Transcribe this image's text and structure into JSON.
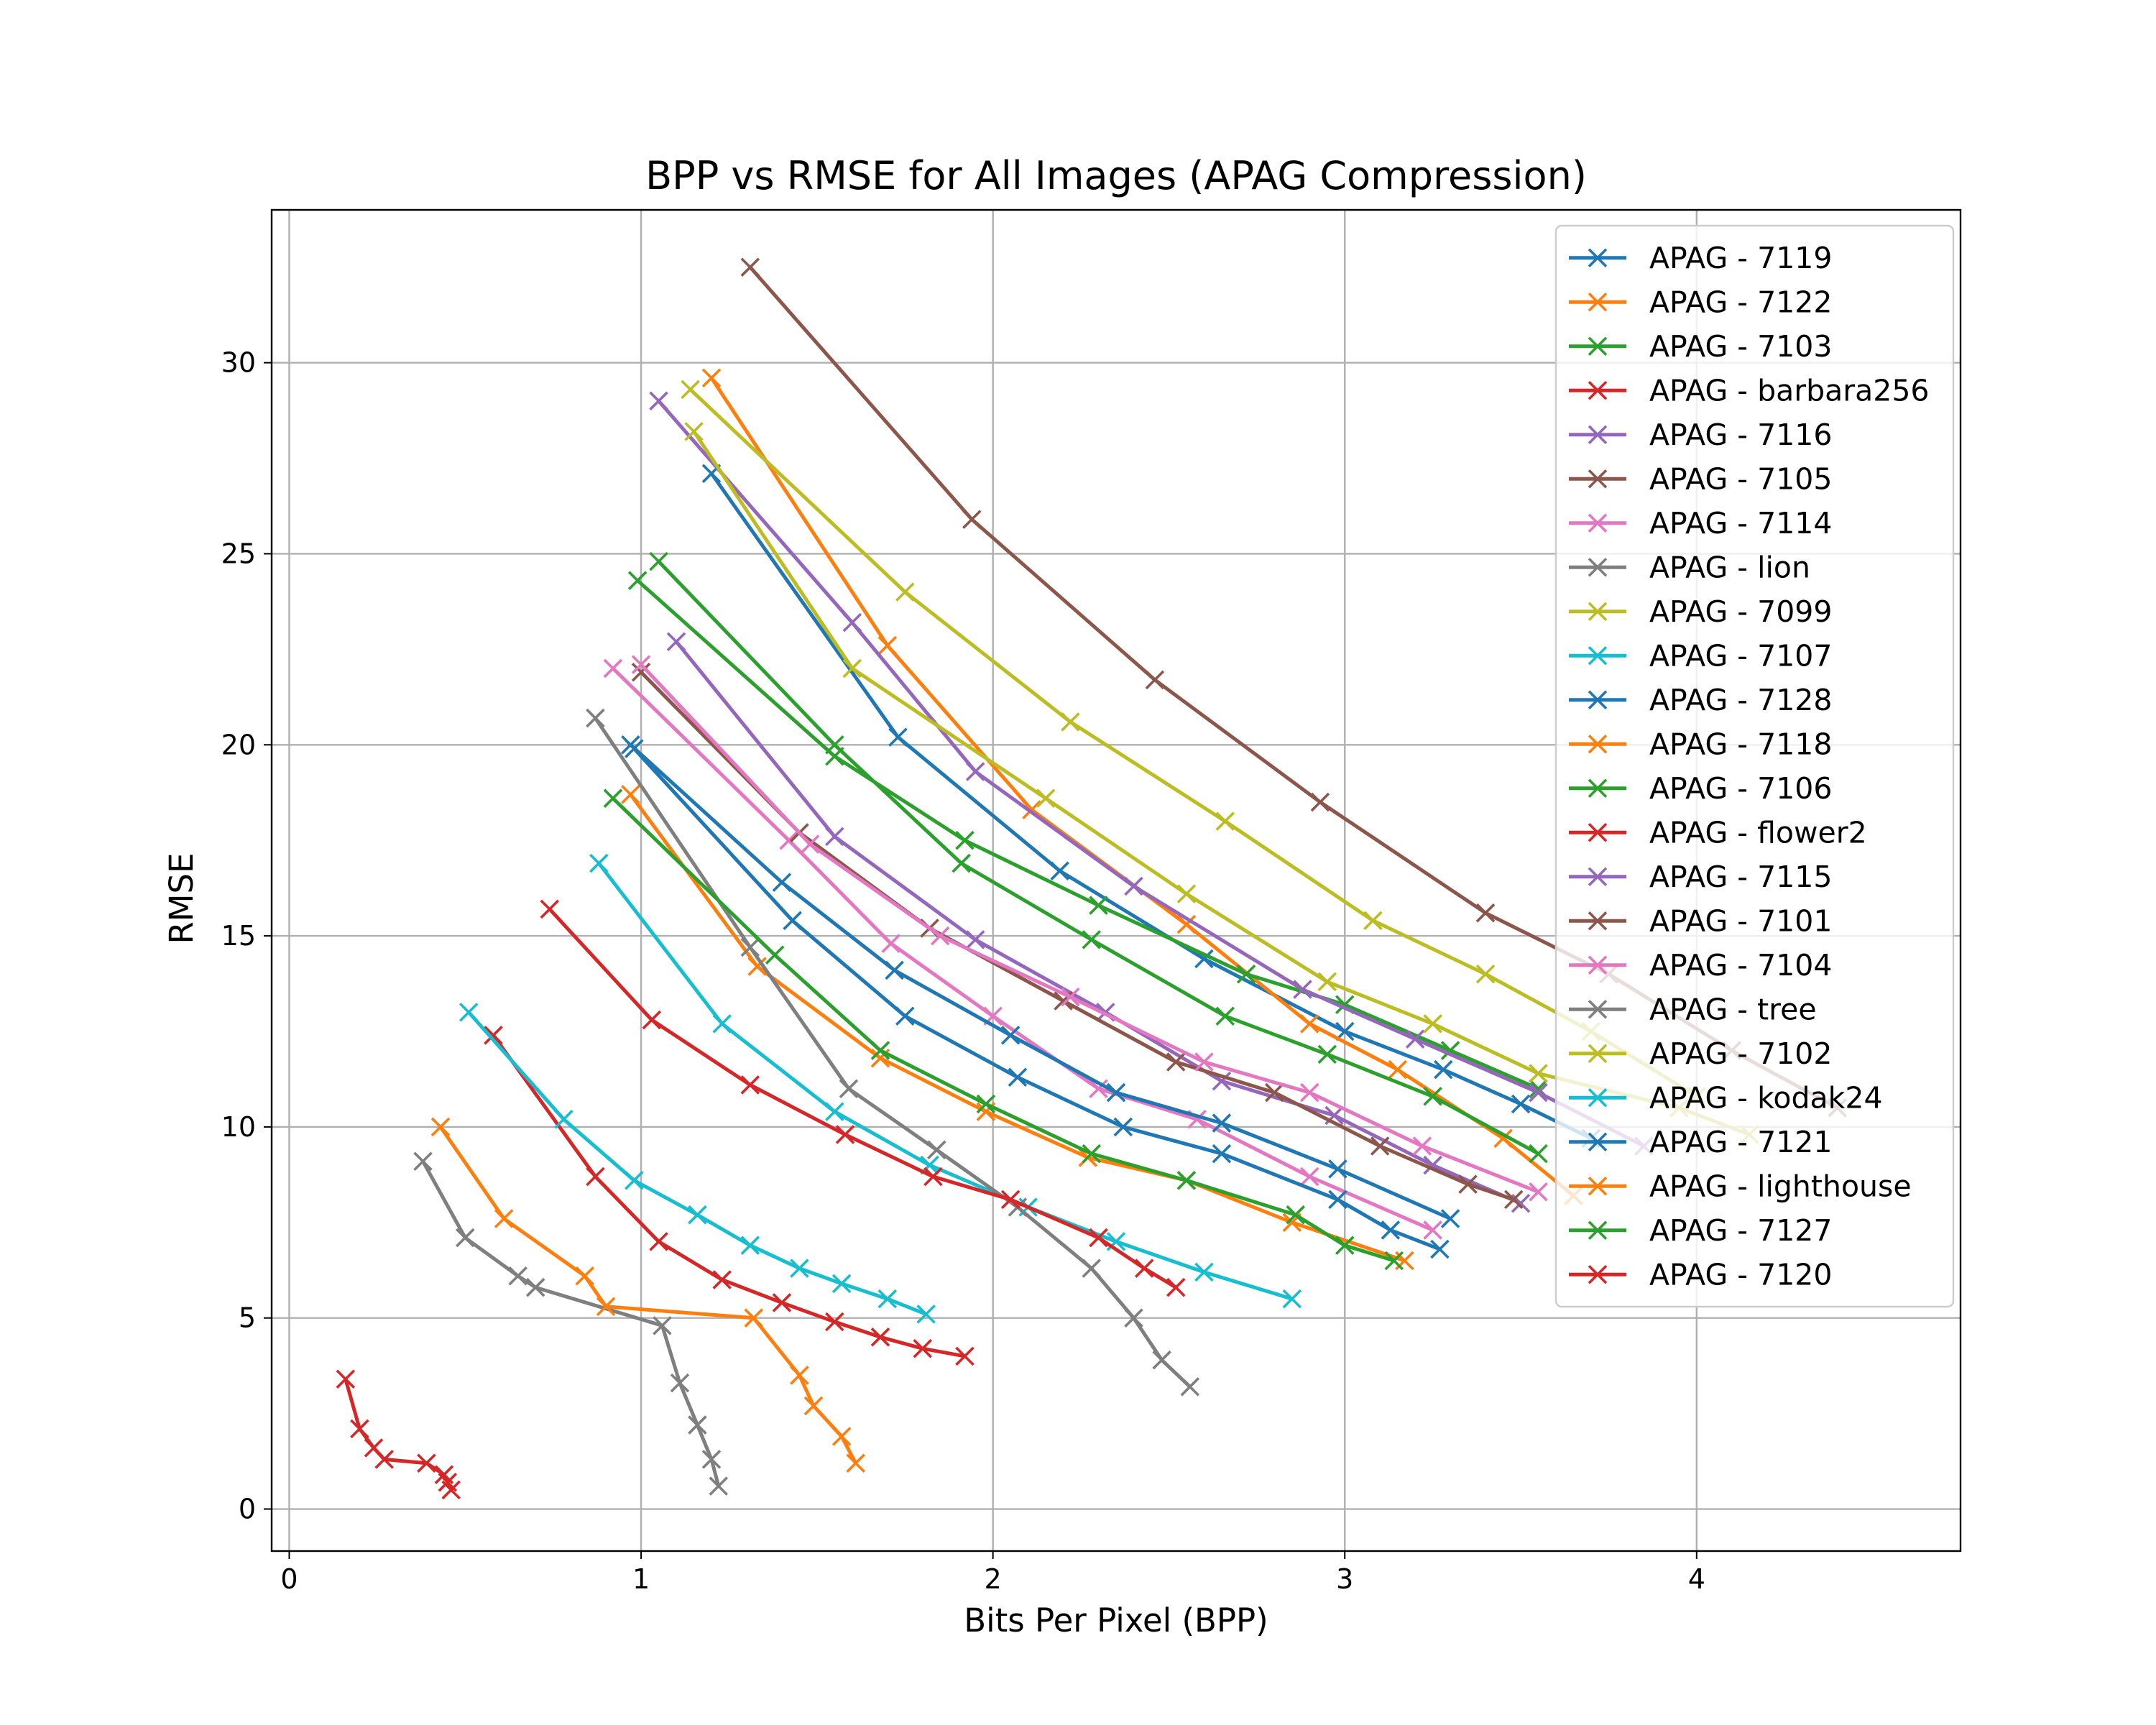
{
  "chart_data": {
    "type": "line",
    "title": "BPP vs RMSE for All Images (APAG Compression)",
    "xlabel": "Bits Per Pixel (BPP)",
    "ylabel": "RMSE",
    "xlim": [
      -0.05,
      4.75
    ],
    "ylim": [
      -1.1,
      34.0
    ],
    "xticks": [
      0,
      1,
      2,
      3,
      4
    ],
    "yticks": [
      0,
      5,
      10,
      15,
      20,
      25,
      30
    ],
    "grid": true,
    "marker": "x",
    "legend_location": "upper right",
    "series": [
      {
        "name": "APAG - 7119",
        "color": "#1f77b4",
        "x": [
          1.2,
          1.73,
          2.19,
          2.6,
          3.0,
          3.28,
          3.5,
          3.7
        ],
        "y": [
          27.1,
          20.2,
          16.7,
          14.4,
          12.5,
          11.5,
          10.6,
          9.7
        ]
      },
      {
        "name": "APAG - 7122",
        "color": "#ff7f0e",
        "x": [
          1.2,
          1.7,
          2.11,
          2.55,
          2.9,
          3.15,
          3.45,
          3.65
        ],
        "y": [
          29.6,
          22.6,
          18.3,
          15.3,
          12.7,
          11.5,
          9.7,
          8.2
        ]
      },
      {
        "name": "APAG - 7103",
        "color": "#2ca02c",
        "x": [
          0.99,
          1.55,
          1.92,
          2.3,
          2.72,
          3.0,
          3.3,
          3.55
        ],
        "y": [
          24.3,
          19.7,
          17.5,
          15.8,
          14.0,
          13.2,
          12.0,
          11.0
        ]
      },
      {
        "name": "APAG - barbara256",
        "color": "#d62728",
        "x": [
          0.16,
          0.2,
          0.24,
          0.27,
          0.39,
          0.44,
          0.45,
          0.46
        ],
        "y": [
          3.4,
          2.1,
          1.6,
          1.3,
          1.2,
          0.9,
          0.7,
          0.5
        ]
      },
      {
        "name": "APAG - 7116",
        "color": "#9467bd",
        "x": [
          1.05,
          1.6,
          1.95,
          2.4,
          2.88,
          3.2,
          3.55,
          3.85
        ],
        "y": [
          29.0,
          23.2,
          19.3,
          16.3,
          13.6,
          12.3,
          10.9,
          9.5
        ]
      },
      {
        "name": "APAG - 7105",
        "color": "#8c564b",
        "x": [
          1.31,
          1.94,
          2.46,
          2.93,
          3.4,
          3.75,
          4.1,
          4.4
        ],
        "y": [
          32.5,
          25.9,
          21.7,
          18.5,
          15.6,
          14.0,
          12.0,
          10.5
        ]
      },
      {
        "name": "APAG - 7114",
        "color": "#e377c2",
        "x": [
          0.92,
          1.42,
          1.71,
          2.0,
          2.3,
          2.58,
          2.9,
          3.25
        ],
        "y": [
          22.0,
          17.5,
          14.8,
          12.9,
          11.0,
          10.2,
          8.7,
          7.3
        ]
      },
      {
        "name": "APAG - lion",
        "color": "#7f7f7f",
        "x": [
          0.38,
          0.5,
          0.65,
          0.7,
          1.06,
          1.11,
          1.16,
          1.2,
          1.22
        ],
        "y": [
          9.1,
          7.1,
          6.1,
          5.8,
          4.8,
          3.3,
          2.2,
          1.3,
          0.6
        ]
      },
      {
        "name": "APAG - 7099",
        "color": "#bcbd22",
        "x": [
          1.14,
          1.75,
          2.22,
          2.66,
          3.08,
          3.4,
          3.7,
          4.0
        ],
        "y": [
          29.3,
          24.0,
          20.6,
          18.0,
          15.4,
          14.0,
          12.5,
          10.8
        ]
      },
      {
        "name": "APAG - 7107",
        "color": "#17becf",
        "x": [
          0.88,
          1.23,
          1.55,
          1.82,
          2.1,
          2.35,
          2.6,
          2.85
        ],
        "y": [
          16.9,
          12.7,
          10.4,
          9.0,
          7.9,
          7.0,
          6.2,
          5.5
        ]
      },
      {
        "name": "APAG - 7128",
        "color": "#1f77b4",
        "x": [
          0.97,
          1.4,
          1.72,
          2.05,
          2.35,
          2.65,
          2.98,
          3.3
        ],
        "y": [
          20.0,
          16.4,
          14.1,
          12.4,
          10.9,
          10.1,
          8.9,
          7.6
        ]
      },
      {
        "name": "APAG - 7118",
        "color": "#ff7f0e",
        "x": [
          0.97,
          1.33,
          1.68,
          1.98,
          2.27,
          2.55,
          2.85,
          3.17
        ],
        "y": [
          18.7,
          14.2,
          11.8,
          10.4,
          9.2,
          8.6,
          7.5,
          6.5
        ]
      },
      {
        "name": "APAG - 7106",
        "color": "#2ca02c",
        "x": [
          1.05,
          1.55,
          1.91,
          2.28,
          2.66,
          2.95,
          3.25,
          3.55
        ],
        "y": [
          24.8,
          20.0,
          16.9,
          14.9,
          12.9,
          11.9,
          10.8,
          9.3
        ]
      },
      {
        "name": "APAG - flower2",
        "color": "#d62728",
        "x": [
          0.58,
          0.87,
          1.05,
          1.23,
          1.4,
          1.55,
          1.68,
          1.8,
          1.92
        ],
        "y": [
          12.4,
          8.7,
          7.0,
          6.0,
          5.4,
          4.9,
          4.5,
          4.2,
          4.0
        ]
      },
      {
        "name": "APAG - 7115",
        "color": "#9467bd",
        "x": [
          1.1,
          1.55,
          1.95,
          2.32,
          2.65,
          2.97,
          3.25,
          3.5
        ],
        "y": [
          22.7,
          17.6,
          14.9,
          13.0,
          11.2,
          10.3,
          9.0,
          8.0
        ]
      },
      {
        "name": "APAG - 7101",
        "color": "#8c564b",
        "x": [
          1.0,
          1.45,
          1.82,
          2.2,
          2.52,
          2.8,
          3.1,
          3.35,
          3.48
        ],
        "y": [
          21.9,
          17.7,
          15.2,
          13.3,
          11.7,
          10.9,
          9.5,
          8.5,
          8.1
        ]
      },
      {
        "name": "APAG - 7104",
        "color": "#e377c2",
        "x": [
          1.0,
          1.48,
          1.85,
          2.22,
          2.6,
          2.9,
          3.22,
          3.55
        ],
        "y": [
          22.1,
          17.4,
          15.0,
          13.4,
          11.7,
          10.9,
          9.5,
          8.3
        ]
      },
      {
        "name": "APAG - tree",
        "color": "#7f7f7f",
        "x": [
          0.87,
          1.31,
          1.59,
          1.84,
          2.07,
          2.28,
          2.4,
          2.48,
          2.56
        ],
        "y": [
          20.7,
          14.7,
          11.0,
          9.4,
          7.9,
          6.3,
          5.0,
          3.9,
          3.2
        ]
      },
      {
        "name": "APAG - 7102",
        "color": "#bcbd22",
        "x": [
          1.15,
          1.6,
          2.15,
          2.55,
          2.95,
          3.25,
          3.55,
          3.95,
          4.15
        ],
        "y": [
          28.2,
          22.0,
          18.6,
          16.1,
          13.8,
          12.7,
          11.4,
          10.5,
          9.8
        ]
      },
      {
        "name": "APAG - kodak24",
        "color": "#17becf",
        "x": [
          0.51,
          0.78,
          0.98,
          1.16,
          1.31,
          1.45,
          1.57,
          1.7,
          1.81
        ],
        "y": [
          13.0,
          10.2,
          8.6,
          7.7,
          6.9,
          6.3,
          5.9,
          5.5,
          5.1
        ]
      },
      {
        "name": "APAG - 7121",
        "color": "#1f77b4",
        "x": [
          0.98,
          1.43,
          1.75,
          2.07,
          2.37,
          2.65,
          2.98,
          3.13,
          3.27
        ],
        "y": [
          19.9,
          15.4,
          12.9,
          11.3,
          10.0,
          9.3,
          8.1,
          7.3,
          6.8
        ]
      },
      {
        "name": "APAG - lighthouse",
        "color": "#ff7f0e",
        "x": [
          0.43,
          0.61,
          0.84,
          0.9,
          1.32,
          1.45,
          1.49,
          1.57,
          1.61
        ],
        "y": [
          10.0,
          7.6,
          6.1,
          5.3,
          5.0,
          3.5,
          2.7,
          1.9,
          1.2
        ]
      },
      {
        "name": "APAG - 7127",
        "color": "#2ca02c",
        "x": [
          0.92,
          1.38,
          1.68,
          1.98,
          2.28,
          2.55,
          2.86,
          3.0,
          3.14
        ],
        "y": [
          18.6,
          14.5,
          12.0,
          10.6,
          9.3,
          8.6,
          7.7,
          6.9,
          6.5
        ]
      },
      {
        "name": "APAG - 7120",
        "color": "#d62728",
        "x": [
          0.74,
          1.03,
          1.31,
          1.58,
          1.83,
          2.05,
          2.3,
          2.43,
          2.52
        ],
        "y": [
          15.7,
          12.8,
          11.1,
          9.8,
          8.7,
          8.1,
          7.1,
          6.3,
          5.8
        ]
      }
    ]
  }
}
